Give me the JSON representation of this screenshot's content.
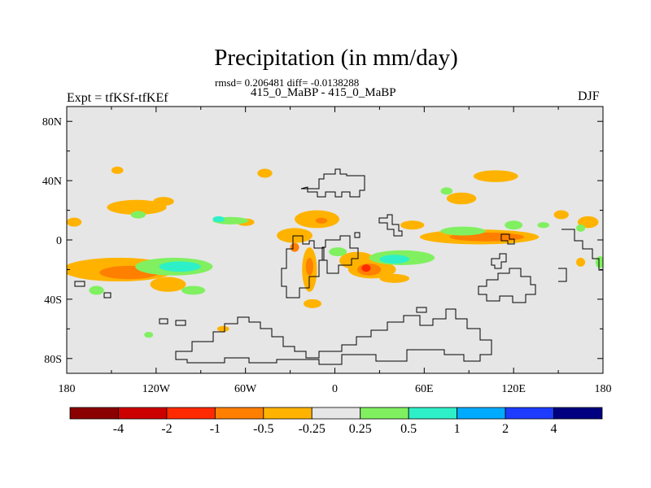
{
  "chart_data": {
    "type": "heatmap",
    "title": "Precipitation (in mm/day)",
    "subtitle": "rmsd= 0.206481 diff= -0.0138288",
    "runs_label": "415_0_MaBP - 415_0_MaBP",
    "left_label": "Expt = tfKSf-tfKEf",
    "right_label": "DJF",
    "x_ticks": [
      "180",
      "120W",
      "60W",
      "0",
      "60E",
      "120E",
      "180"
    ],
    "x_tick_values": [
      -180,
      -120,
      -60,
      0,
      60,
      120,
      180
    ],
    "y_ticks": [
      "80N",
      "40N",
      "0",
      "40S",
      "80S"
    ],
    "y_tick_values": [
      80,
      40,
      0,
      -40,
      -80
    ],
    "xlim": [
      -180,
      180
    ],
    "ylim": [
      -90,
      90
    ],
    "colorbar_labels": [
      "-4",
      "-2",
      "-1",
      "-0.5",
      "-0.25",
      "0.25",
      "0.5",
      "1",
      "2",
      "4"
    ],
    "levels": [
      -4,
      -2,
      -1,
      -0.5,
      -0.25,
      0.25,
      0.5,
      1,
      2,
      4
    ],
    "colors": [
      "#8b0000",
      "#cd0000",
      "#ff2a00",
      "#ff7f00",
      "#ffb300",
      "#e6e6e6",
      "#80f060",
      "#2ef0c8",
      "#00aaff",
      "#1e3cff",
      "#000080"
    ],
    "background": "#e6e6e6",
    "anomaly_features": [
      {
        "lon": -145,
        "lat": -20,
        "rx": 38,
        "ry": 8,
        "value": -0.3
      },
      {
        "lon": -138,
        "lat": -22,
        "rx": 20,
        "ry": 4.5,
        "value": -0.7
      },
      {
        "lon": -108,
        "lat": -18,
        "rx": 26,
        "ry": 6,
        "value": 0.3
      },
      {
        "lon": -104,
        "lat": -18,
        "rx": 14,
        "ry": 3.5,
        "value": 0.7
      },
      {
        "lon": -112,
        "lat": -30,
        "rx": 12,
        "ry": 5,
        "value": -0.3
      },
      {
        "lon": -146,
        "lat": 47,
        "rx": 4,
        "ry": 2.5,
        "value": -0.3
      },
      {
        "lon": -133,
        "lat": 22,
        "rx": 20,
        "ry": 5,
        "value": -0.3
      },
      {
        "lon": -115,
        "lat": 26,
        "rx": 7,
        "ry": 3,
        "value": -0.3
      },
      {
        "lon": -60,
        "lat": 12,
        "rx": 6,
        "ry": 2.5,
        "value": -0.3
      },
      {
        "lon": -47,
        "lat": 45,
        "rx": 5,
        "ry": 3,
        "value": -0.3
      },
      {
        "lon": -27,
        "lat": 3,
        "rx": 12,
        "ry": 5,
        "value": -0.3
      },
      {
        "lon": -12,
        "lat": 14,
        "rx": 15,
        "ry": 6,
        "value": -0.3
      },
      {
        "lon": -9,
        "lat": 13,
        "rx": 4,
        "ry": 2,
        "value": -0.7
      },
      {
        "lon": -27,
        "lat": -5,
        "rx": 3,
        "ry": 3,
        "value": -0.7
      },
      {
        "lon": -17,
        "lat": -20,
        "rx": 5,
        "ry": 15,
        "value": -0.3
      },
      {
        "lon": -17,
        "lat": -18,
        "rx": 2.5,
        "ry": 6,
        "value": -0.7
      },
      {
        "lon": 15,
        "lat": -14,
        "rx": 12,
        "ry": 6,
        "value": -0.3
      },
      {
        "lon": 25,
        "lat": -20,
        "rx": 16,
        "ry": 6,
        "value": -0.3
      },
      {
        "lon": 23,
        "lat": -20,
        "rx": 8,
        "ry": 4,
        "value": -0.7
      },
      {
        "lon": 21,
        "lat": -19,
        "rx": 3,
        "ry": 2.5,
        "value": -1.5
      },
      {
        "lon": 40,
        "lat": -26,
        "rx": 10,
        "ry": 3,
        "value": -0.3
      },
      {
        "lon": 2,
        "lat": -8,
        "rx": 6,
        "ry": 3,
        "value": 0.3
      },
      {
        "lon": 45,
        "lat": -12,
        "rx": 22,
        "ry": 5,
        "value": 0.3
      },
      {
        "lon": 40,
        "lat": -13,
        "rx": 10,
        "ry": 3,
        "value": 0.7
      },
      {
        "lon": 97,
        "lat": 2,
        "rx": 40,
        "ry": 5,
        "value": -0.3
      },
      {
        "lon": 102,
        "lat": 2,
        "rx": 25,
        "ry": 3,
        "value": -0.7
      },
      {
        "lon": 108,
        "lat": 43,
        "rx": 15,
        "ry": 4,
        "value": -0.3
      },
      {
        "lon": 85,
        "lat": 28,
        "rx": 10,
        "ry": 4,
        "value": -0.3
      },
      {
        "lon": 52,
        "lat": 10,
        "rx": 8,
        "ry": 3,
        "value": -0.3
      },
      {
        "lon": 152,
        "lat": 17,
        "rx": 5,
        "ry": 3,
        "value": -0.3
      },
      {
        "lon": 170,
        "lat": 12,
        "rx": 7,
        "ry": 4,
        "value": -0.3
      },
      {
        "lon": -175,
        "lat": 12,
        "rx": 5,
        "ry": 3,
        "value": -0.3
      },
      {
        "lon": 165,
        "lat": -15,
        "rx": 3,
        "ry": 3,
        "value": -0.3
      },
      {
        "lon": -70,
        "lat": 13,
        "rx": 12,
        "ry": 2.5,
        "value": 0.3
      },
      {
        "lon": -78,
        "lat": 14,
        "rx": 4,
        "ry": 2,
        "value": 0.7
      },
      {
        "lon": -160,
        "lat": -34,
        "rx": 5,
        "ry": 3,
        "value": 0.3
      },
      {
        "lon": -95,
        "lat": -34,
        "rx": 8,
        "ry": 3,
        "value": 0.3
      },
      {
        "lon": 86,
        "lat": 6,
        "rx": 15,
        "ry": 3,
        "value": 0.3
      },
      {
        "lon": 75,
        "lat": 33,
        "rx": 4,
        "ry": 2.5,
        "value": 0.3
      },
      {
        "lon": 120,
        "lat": 10,
        "rx": 6,
        "ry": 3,
        "value": 0.3
      },
      {
        "lon": 140,
        "lat": 10,
        "rx": 4,
        "ry": 2,
        "value": 0.3
      },
      {
        "lon": 165,
        "lat": 8,
        "rx": 3,
        "ry": 2.5,
        "value": 0.3
      },
      {
        "lon": 178,
        "lat": -15,
        "rx": 3,
        "ry": 4,
        "value": 0.3
      },
      {
        "lon": -132,
        "lat": 17,
        "rx": 5,
        "ry": 2.5,
        "value": 0.3
      },
      {
        "lon": -75,
        "lat": -60,
        "rx": 4,
        "ry": 2,
        "value": -0.3
      },
      {
        "lon": -125,
        "lat": -64,
        "rx": 3,
        "ry": 2,
        "value": 0.3
      },
      {
        "lon": -15,
        "lat": -43,
        "rx": 6,
        "ry": 3,
        "value": -0.3
      }
    ]
  }
}
